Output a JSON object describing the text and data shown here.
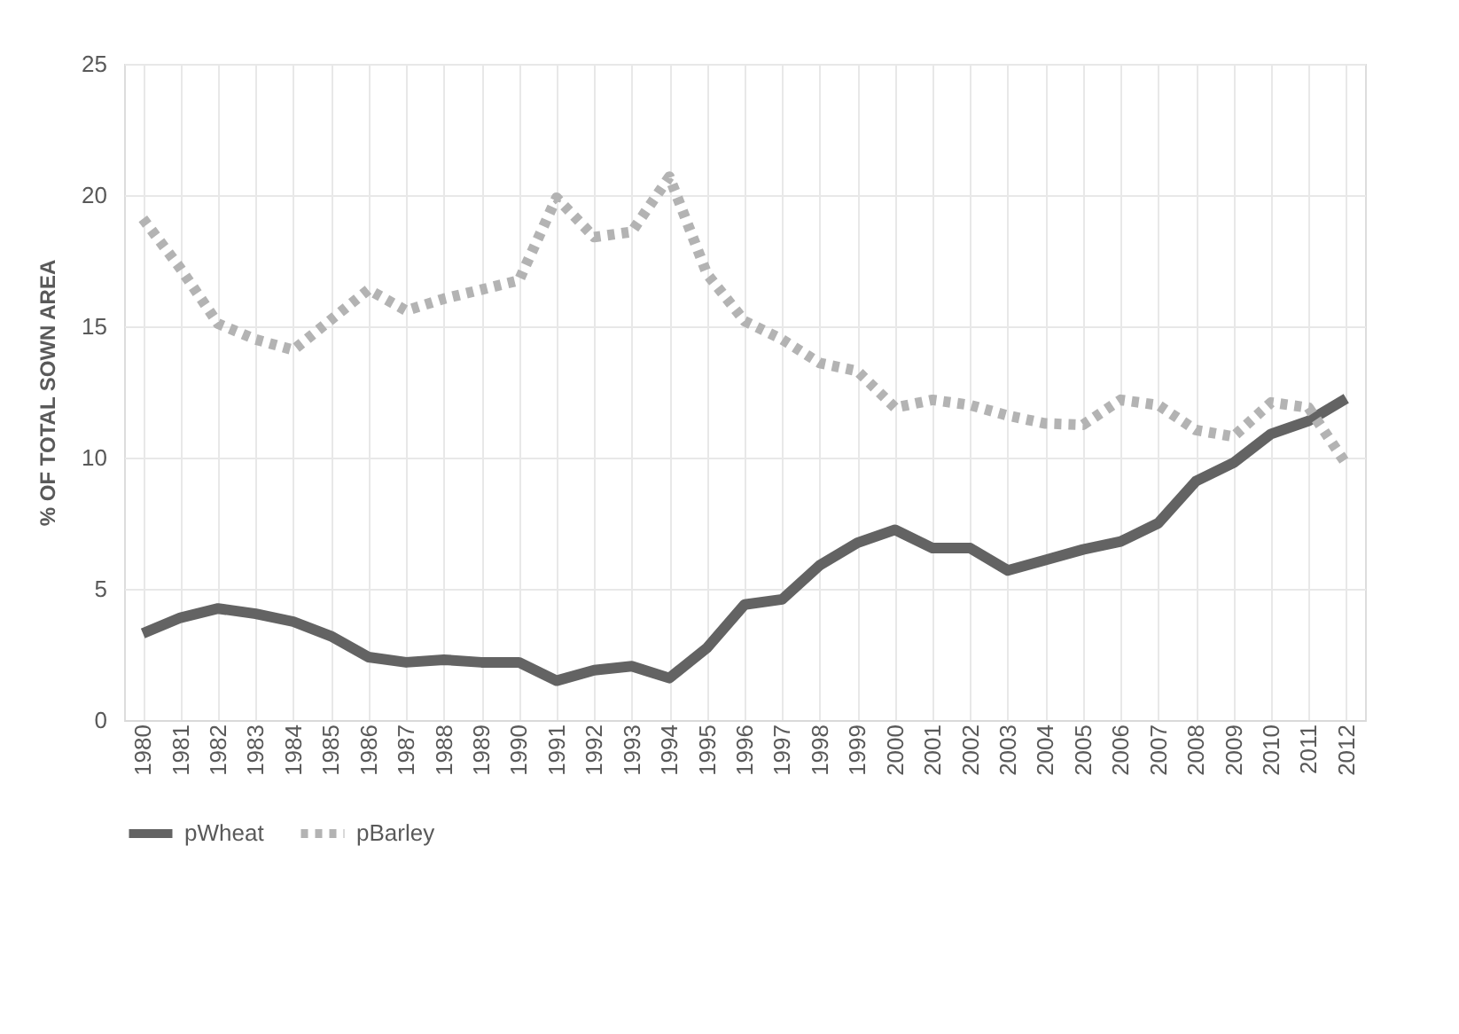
{
  "chart_data": {
    "type": "line",
    "ylabel": "% OF TOTAL SOWN AREA",
    "categories": [
      "1980",
      "1981",
      "1982",
      "1983",
      "1984",
      "1985",
      "1986",
      "1987",
      "1988",
      "1989",
      "1990",
      "1991",
      "1992",
      "1993",
      "1994",
      "1995",
      "1996",
      "1997",
      "1998",
      "1999",
      "2000",
      "2001",
      "2002",
      "2003",
      "2004",
      "2005",
      "2006",
      "2007",
      "2008",
      "2009",
      "2010",
      "2011",
      "2012"
    ],
    "series": [
      {
        "name": "pWheat",
        "color": "#636363",
        "line_style": "solid",
        "values": [
          3.3,
          3.9,
          4.25,
          4.05,
          3.75,
          3.2,
          2.4,
          2.2,
          2.3,
          2.2,
          2.2,
          1.5,
          1.9,
          2.05,
          1.6,
          2.75,
          4.4,
          4.6,
          5.9,
          6.75,
          7.25,
          6.55,
          6.55,
          5.7,
          6.1,
          6.5,
          6.8,
          7.5,
          9.1,
          9.8,
          10.9,
          11.4,
          12.25
        ]
      },
      {
        "name": "pBarley",
        "color": "#b3b3b3",
        "line_style": "dotted",
        "values": [
          19.1,
          17.2,
          15.1,
          14.5,
          14.1,
          15.25,
          16.4,
          15.6,
          16.05,
          16.4,
          16.75,
          19.9,
          18.4,
          18.6,
          20.7,
          17,
          15.2,
          14.5,
          13.6,
          13.3,
          11.9,
          12.2,
          12,
          11.6,
          11.3,
          11.25,
          12.2,
          12,
          11.05,
          10.8,
          12.1,
          11.9,
          9.75
        ]
      }
    ],
    "ylim": [
      0,
      25
    ],
    "yticks": [
      0,
      5,
      10,
      15,
      20,
      25
    ],
    "grid": true,
    "legend": "bottom",
    "marker": "none"
  }
}
